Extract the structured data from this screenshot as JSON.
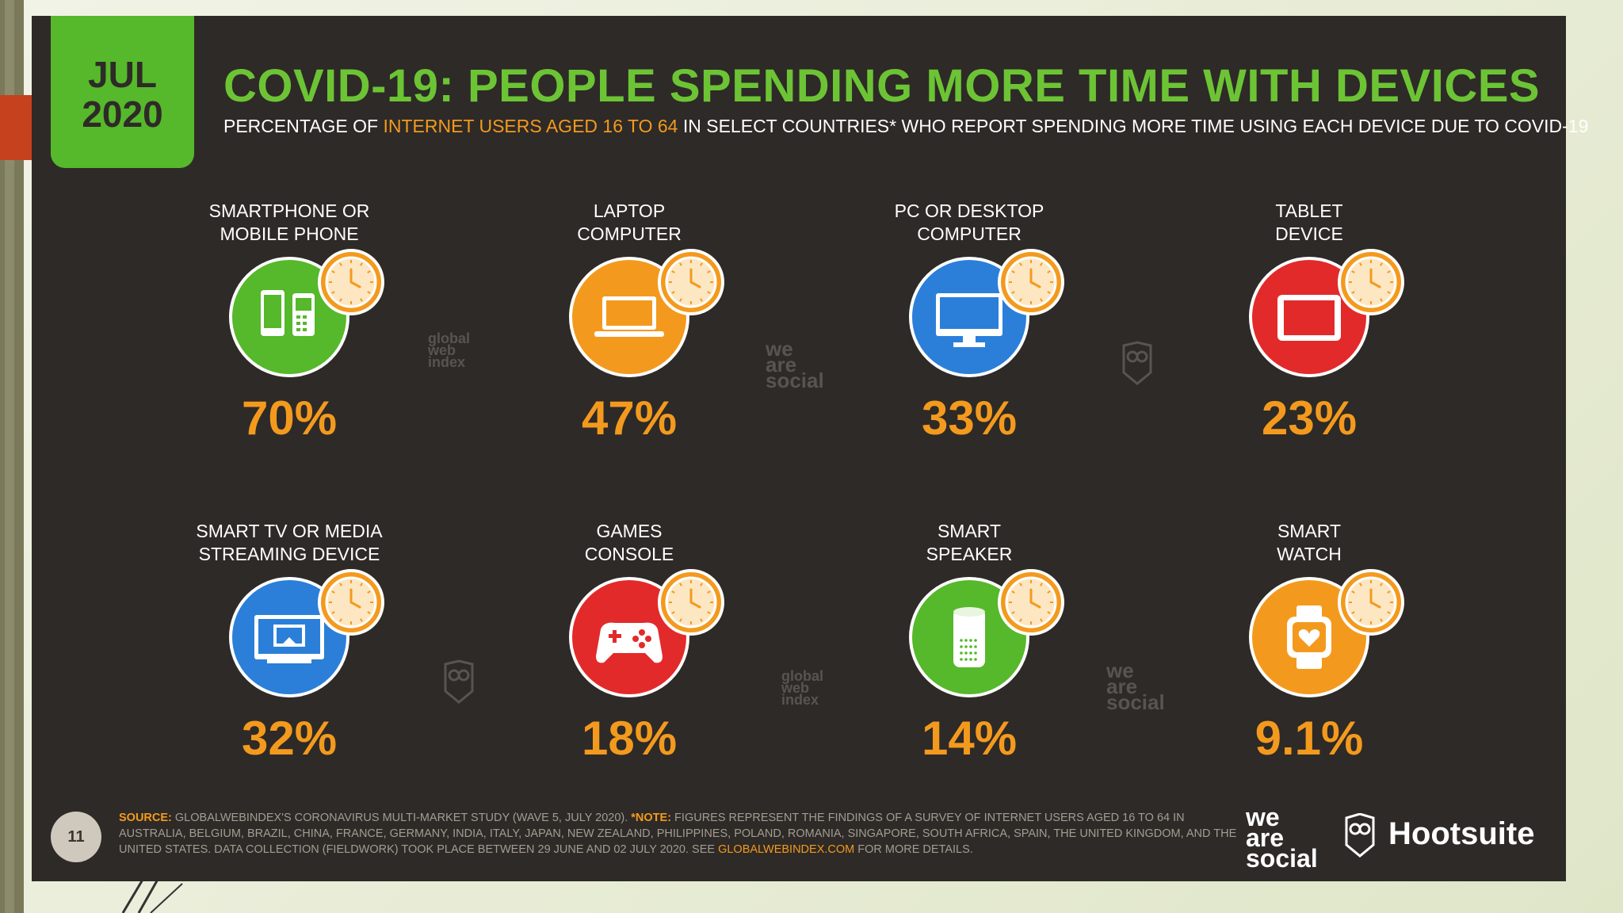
{
  "header": {
    "date_month": "JUL",
    "date_year": "2020",
    "title": "COVID-19: PEOPLE SPENDING MORE TIME WITH DEVICES",
    "subtitle_pre": "PERCENTAGE OF ",
    "subtitle_highlight": "INTERNET USERS AGED 16 TO 64",
    "subtitle_post": " IN SELECT COUNTRIES* WHO REPORT SPENDING MORE TIME USING EACH DEVICE DUE TO COVID-19"
  },
  "chart_data": {
    "type": "table",
    "title": "COVID-19: PEOPLE SPENDING MORE TIME WITH DEVICES",
    "categories": [
      "SMARTPHONE OR MOBILE PHONE",
      "LAPTOP COMPUTER",
      "PC OR DESKTOP COMPUTER",
      "TABLET DEVICE",
      "SMART TV OR MEDIA STREAMING DEVICE",
      "GAMES CONSOLE",
      "SMART SPEAKER",
      "SMART WATCH"
    ],
    "values": [
      70,
      47,
      33,
      23,
      32,
      18,
      14,
      9.1
    ],
    "unit": "%"
  },
  "devices": [
    {
      "label": "SMARTPHONE OR\nMOBILE PHONE",
      "value": "70%",
      "color": "#56b82b",
      "icon": "smartphone-icon"
    },
    {
      "label": "LAPTOP\nCOMPUTER",
      "value": "47%",
      "color": "#f39a1e",
      "icon": "laptop-icon"
    },
    {
      "label": "PC OR DESKTOP\nCOMPUTER",
      "value": "33%",
      "color": "#2b7fd9",
      "icon": "desktop-icon"
    },
    {
      "label": "TABLET\nDEVICE",
      "value": "23%",
      "color": "#e32a2a",
      "icon": "tablet-icon"
    },
    {
      "label": "SMART TV OR MEDIA\nSTREAMING DEVICE",
      "value": "32%",
      "color": "#2b7fd9",
      "icon": "smart-tv-icon"
    },
    {
      "label": "GAMES\nCONSOLE",
      "value": "18%",
      "color": "#e32a2a",
      "icon": "gamepad-icon"
    },
    {
      "label": "SMART\nSPEAKER",
      "value": "14%",
      "color": "#56b82b",
      "icon": "smart-speaker-icon"
    },
    {
      "label": "SMART\nWATCH",
      "value": "9.1%",
      "color": "#f39a1e",
      "icon": "smartwatch-icon"
    }
  ],
  "watermarks": {
    "gwi": "global\nweb\nindex",
    "was": "we\nare\nsocial"
  },
  "footer": {
    "page_number": "11",
    "source_label": "SOURCE:",
    "source_text": " GLOBALWEBINDEX'S CORONAVIRUS MULTI-MARKET STUDY (WAVE 5, JULY 2020). ",
    "note_label": "*NOTE:",
    "note_text": " FIGURES REPRESENT THE FINDINGS OF A SURVEY OF INTERNET USERS AGED 16 TO 64 IN AUSTRALIA, BELGIUM, BRAZIL, CHINA, FRANCE, GERMANY, INDIA, ITALY, JAPAN, NEW ZEALAND, PHILIPPINES, POLAND, ROMANIA, SINGAPORE, SOUTH AFRICA, SPAIN, THE UNITED KINGDOM, AND THE UNITED STATES. DATA COLLECTION (FIELDWORK) TOOK PLACE BETWEEN 29 JUNE AND 02 JULY 2020. SEE ",
    "link_text": "GLOBALWEBINDEX.COM",
    "tail_text": " FOR MORE DETAILS.",
    "brand_was": "we\nare\nsocial",
    "brand_hootsuite": "Hootsuite"
  }
}
